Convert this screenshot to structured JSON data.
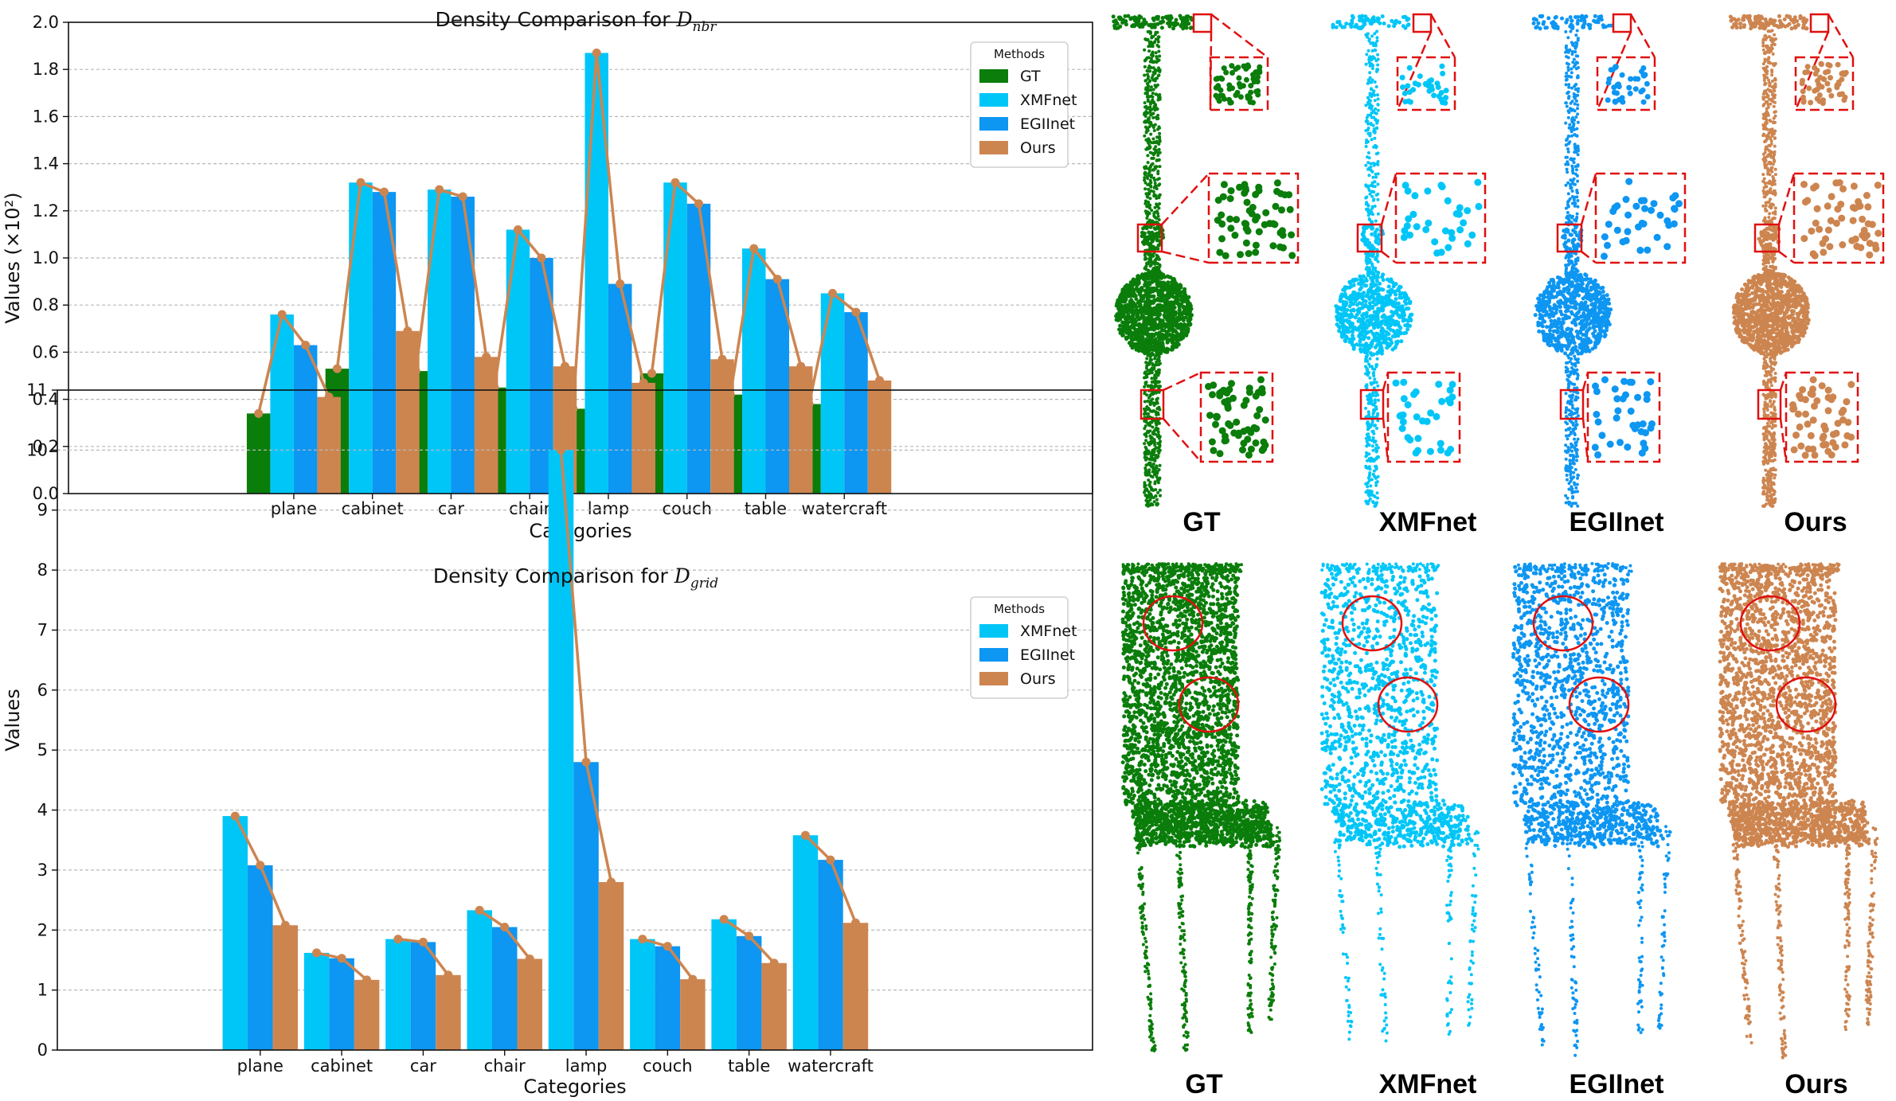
{
  "colors": {
    "GT": "#0a7d0a",
    "XMFnet": "#00c6f8",
    "EGIInet": "#0d96f2",
    "Ours": "#cd8550",
    "frame": "#e01010"
  },
  "chart_data": [
    {
      "type": "bar",
      "title_prefix": "Density Comparison for ",
      "title_symbol": "D",
      "title_sub": "nbr",
      "xlabel": "Categories",
      "ylabel": "Values (×10²)",
      "ylim": [
        0,
        2.0
      ],
      "yticks": [
        "0.0",
        "0.2",
        "0.4",
        "0.6",
        "0.8",
        "1.0",
        "1.2",
        "1.4",
        "1.6",
        "1.8",
        "2.0"
      ],
      "grid": true,
      "legend_title": "Methods",
      "legend_position": "top-right",
      "categories": [
        "plane",
        "cabinet",
        "car",
        "chair",
        "lamp",
        "couch",
        "table",
        "watercraft"
      ],
      "series": [
        {
          "name": "GT",
          "values": [
            0.34,
            0.53,
            0.52,
            0.45,
            0.36,
            0.51,
            0.42,
            0.38
          ]
        },
        {
          "name": "XMFnet",
          "values": [
            0.76,
            1.32,
            1.29,
            1.12,
            1.87,
            1.32,
            1.04,
            0.85
          ]
        },
        {
          "name": "EGIInet",
          "values": [
            0.63,
            1.28,
            1.26,
            1.0,
            0.89,
            1.23,
            0.91,
            0.77
          ]
        },
        {
          "name": "Ours",
          "values": [
            0.41,
            0.69,
            0.58,
            0.54,
            0.47,
            0.57,
            0.54,
            0.48
          ]
        }
      ]
    },
    {
      "type": "bar",
      "title_prefix": "Density Comparison for ",
      "title_symbol": "D",
      "title_sub": "grid",
      "xlabel": "Categories",
      "ylabel": "Values",
      "ylim": [
        0,
        11
      ],
      "yticks": [
        "0",
        "1",
        "2",
        "3",
        "4",
        "5",
        "6",
        "7",
        "8",
        "9",
        "10",
        "11"
      ],
      "grid": true,
      "legend_title": "Methods",
      "legend_position": "top-right",
      "categories": [
        "plane",
        "cabinet",
        "car",
        "chair",
        "lamp",
        "couch",
        "table",
        "watercraft"
      ],
      "series": [
        {
          "name": "XMFnet",
          "values": [
            3.9,
            1.62,
            1.85,
            2.33,
            10.0,
            1.85,
            2.18,
            3.58
          ]
        },
        {
          "name": "EGIInet",
          "values": [
            3.08,
            1.53,
            1.8,
            2.05,
            4.8,
            1.73,
            1.9,
            3.17
          ]
        },
        {
          "name": "Ours",
          "values": [
            2.08,
            1.17,
            1.25,
            1.52,
            2.8,
            1.18,
            1.45,
            2.12
          ]
        }
      ]
    }
  ],
  "panels": {
    "labels": [
      "GT",
      "XMFnet",
      "EGIInet",
      "Ours"
    ]
  }
}
